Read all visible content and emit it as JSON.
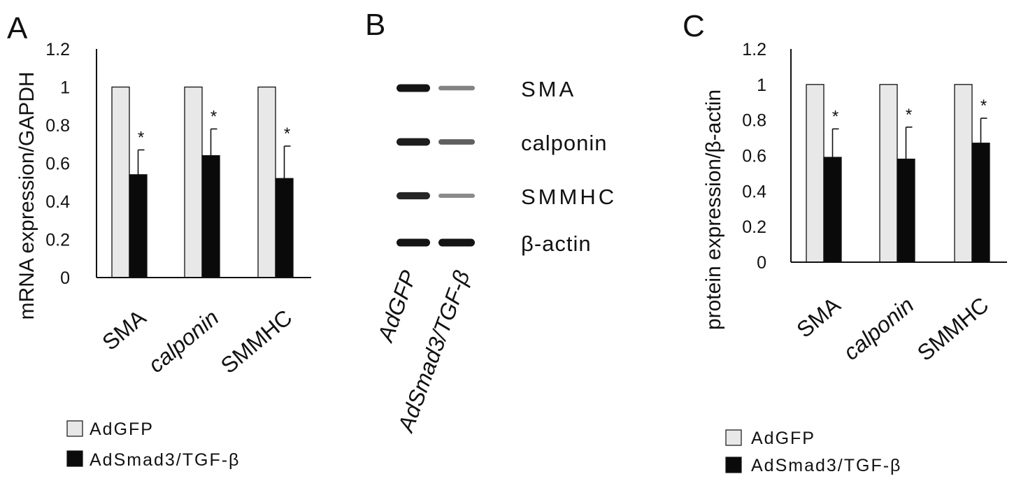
{
  "panels": {
    "a": {
      "letter": "A"
    },
    "b": {
      "letter": "B"
    },
    "c": {
      "letter": "C"
    }
  },
  "legend": {
    "items": [
      "AdGFP",
      "AdSmad3/TGF-β"
    ]
  },
  "colors": {
    "control": "#e8e8e8",
    "treated": "#0a0a0a",
    "axis": "#111111"
  },
  "blot": {
    "lanes": [
      "AdGFP",
      "AdSmad3/TGF-β"
    ],
    "bands": [
      {
        "label": "SMA",
        "intensity": [
          1.0,
          0.35
        ]
      },
      {
        "label": "calponin",
        "intensity": [
          0.95,
          0.55
        ]
      },
      {
        "label": "SMMHC",
        "intensity": [
          0.9,
          0.3
        ]
      },
      {
        "label": "β-actin",
        "intensity": [
          1.0,
          1.0
        ]
      }
    ]
  },
  "chart_data": [
    {
      "type": "bar",
      "panel": "A",
      "categories": [
        "SMA",
        "calponin",
        "SMMHC"
      ],
      "ylabel": "mRNA expression/GAPDH",
      "ylim": [
        0,
        1.2
      ],
      "yticks": [
        "0",
        "0.2",
        "0.4",
        "0.6",
        "0.8",
        "1",
        "1.2"
      ],
      "series": [
        {
          "name": "AdGFP",
          "values": [
            1.0,
            1.0,
            1.0
          ]
        },
        {
          "name": "AdSmad3/TGF-β",
          "values": [
            0.54,
            0.64,
            0.52
          ],
          "error": [
            0.13,
            0.14,
            0.17
          ]
        }
      ],
      "annotations": [
        "*",
        "*",
        "*"
      ],
      "grid": false,
      "legend_position": "bottom-left"
    },
    {
      "type": "bar",
      "panel": "C",
      "categories": [
        "SMA",
        "calponin",
        "SMMHC"
      ],
      "ylabel": "protein expression/β-actin",
      "ylim": [
        0,
        1.2
      ],
      "yticks": [
        "0",
        "0.2",
        "0.4",
        "0.6",
        "0.8",
        "1",
        "1.2"
      ],
      "series": [
        {
          "name": "AdGFP",
          "values": [
            1.0,
            1.0,
            1.0
          ]
        },
        {
          "name": "AdSmad3/TGF-β",
          "values": [
            0.59,
            0.58,
            0.67
          ],
          "error": [
            0.16,
            0.18,
            0.14
          ]
        }
      ],
      "annotations": [
        "*",
        "*",
        "*"
      ],
      "grid": false,
      "legend_position": "bottom-left"
    }
  ]
}
